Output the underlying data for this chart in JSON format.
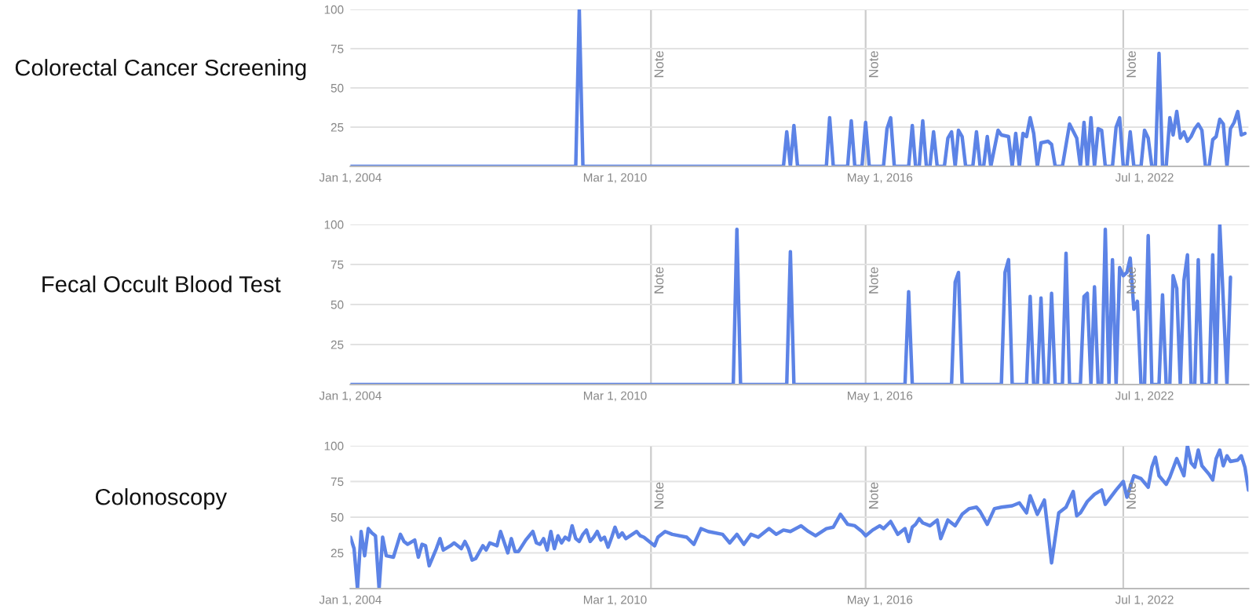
{
  "chart_data": [
    {
      "type": "line",
      "title": "Colorectal Cancer Screening",
      "grid": "y",
      "legend": false,
      "marker": "none",
      "line_style": "solid",
      "xlim": [
        "2004-01-01",
        "2024-12-01"
      ],
      "ylim": [
        0,
        100
      ],
      "xticks": [
        {
          "value": "2004-01-01",
          "label": "Jan 1, 2004"
        },
        {
          "value": "2010-03-01",
          "label": "Mar 1, 2010"
        },
        {
          "value": "2016-05-01",
          "label": "May 1, 2016"
        },
        {
          "value": "2022-07-01",
          "label": "Jul 1, 2022"
        }
      ],
      "yticks": [
        25,
        50,
        75,
        100
      ],
      "ref_lines": [
        {
          "axis": "x",
          "value": "2011-01-01",
          "label": "Note"
        },
        {
          "axis": "x",
          "value": "2016-01-01",
          "label": "Note"
        },
        {
          "axis": "x",
          "value": "2022-01-01",
          "label": "Note"
        }
      ],
      "x": [
        "2004-01",
        "2009-04",
        "2009-05",
        "2009-06",
        "2014-02",
        "2014-03",
        "2014-04",
        "2014-05",
        "2014-06",
        "2015-02",
        "2015-03",
        "2015-04",
        "2015-08",
        "2015-09",
        "2015-10",
        "2015-12",
        "2016-01",
        "2016-02",
        "2016-06",
        "2016-07",
        "2016-08",
        "2016-09",
        "2017-01",
        "2017-02",
        "2017-03",
        "2017-04",
        "2017-05",
        "2017-06",
        "2017-07",
        "2017-08",
        "2017-09",
        "2017-11",
        "2017-12",
        "2018-01",
        "2018-02",
        "2018-03",
        "2018-04",
        "2018-05",
        "2018-07",
        "2018-08",
        "2018-09",
        "2018-10",
        "2018-11",
        "2018-12",
        "2019-02",
        "2019-03",
        "2019-05",
        "2019-06",
        "2019-07",
        "2019-08",
        "2019-09",
        "2019-10",
        "2019-11",
        "2019-12",
        "2020-01",
        "2020-02",
        "2020-04",
        "2020-05",
        "2020-06",
        "2020-08",
        "2020-10",
        "2020-12",
        "2021-01",
        "2021-02",
        "2021-03",
        "2021-04",
        "2021-05",
        "2021-06",
        "2021-07",
        "2021-08",
        "2021-10",
        "2021-11",
        "2021-12",
        "2022-01",
        "2022-02",
        "2022-03",
        "2022-04",
        "2022-06",
        "2022-07",
        "2022-08",
        "2022-09",
        "2022-10",
        "2022-11",
        "2022-12",
        "2023-01",
        "2023-02",
        "2023-03",
        "2023-04",
        "2023-05",
        "2023-06",
        "2023-07",
        "2023-08",
        "2023-09",
        "2023-10",
        "2023-11",
        "2023-12",
        "2024-01",
        "2024-02",
        "2024-03",
        "2024-04",
        "2024-05",
        "2024-06",
        "2024-07",
        "2024-08",
        "2024-09",
        "2024-10",
        "2024-11"
      ],
      "series": [
        {
          "color": "#5c83e6",
          "values": [
            0,
            0,
            100,
            0,
            0,
            22,
            0,
            26,
            0,
            0,
            31,
            0,
            0,
            29,
            0,
            0,
            28,
            0,
            0,
            24,
            31,
            0,
            0,
            26,
            0,
            0,
            29,
            0,
            0,
            22,
            0,
            0,
            18,
            22,
            0,
            23,
            19,
            0,
            0,
            22,
            0,
            0,
            19,
            0,
            23,
            20,
            19,
            0,
            21,
            0,
            21,
            19,
            31,
            21,
            0,
            15,
            16,
            14,
            0,
            0,
            27,
            18,
            0,
            28,
            0,
            31,
            0,
            24,
            23,
            0,
            0,
            25,
            31,
            0,
            0,
            22,
            0,
            0,
            23,
            18,
            0,
            0,
            72,
            0,
            0,
            31,
            20,
            35,
            18,
            22,
            16,
            19,
            24,
            27,
            23,
            0,
            0,
            17,
            19,
            30,
            27,
            0,
            24,
            28,
            35,
            20,
            21
          ]
        }
      ]
    },
    {
      "type": "line",
      "title": "Fecal Occult Blood Test",
      "grid": "y",
      "legend": false,
      "marker": "none",
      "line_style": "solid",
      "xlim": [
        "2004-01-01",
        "2024-12-01"
      ],
      "ylim": [
        0,
        100
      ],
      "xticks": [
        {
          "value": "2004-01-01",
          "label": "Jan 1, 2004"
        },
        {
          "value": "2010-03-01",
          "label": "Mar 1, 2010"
        },
        {
          "value": "2016-05-01",
          "label": "May 1, 2016"
        },
        {
          "value": "2022-07-01",
          "label": "Jul 1, 2022"
        }
      ],
      "yticks": [
        25,
        50,
        75,
        100
      ],
      "ref_lines": [
        {
          "axis": "x",
          "value": "2011-01-01",
          "label": "Note"
        },
        {
          "axis": "x",
          "value": "2016-01-01",
          "label": "Note"
        },
        {
          "axis": "x",
          "value": "2022-01-01",
          "label": "Note"
        }
      ],
      "x": [
        "2004-01",
        "2012-12",
        "2013-01",
        "2013-02",
        "2014-03",
        "2014-04",
        "2014-05",
        "2016-12",
        "2017-01",
        "2017-02",
        "2018-01",
        "2018-02",
        "2018-03",
        "2018-04",
        "2019-03",
        "2019-04",
        "2019-05",
        "2019-06",
        "2019-10",
        "2019-11",
        "2019-12",
        "2020-01",
        "2020-02",
        "2020-03",
        "2020-04",
        "2020-05",
        "2020-06",
        "2020-08",
        "2020-09",
        "2020-10",
        "2021-01",
        "2021-02",
        "2021-03",
        "2021-04",
        "2021-05",
        "2021-06",
        "2021-07",
        "2021-08",
        "2021-09",
        "2021-10",
        "2021-11",
        "2021-12",
        "2022-01",
        "2022-02",
        "2022-03",
        "2022-04",
        "2022-05",
        "2022-06",
        "2022-07",
        "2022-08",
        "2022-09",
        "2022-11",
        "2022-12",
        "2023-01",
        "2023-02",
        "2023-03",
        "2023-04",
        "2023-05",
        "2023-06",
        "2023-07",
        "2023-08",
        "2023-09",
        "2023-10",
        "2023-11",
        "2024-01",
        "2024-02",
        "2024-03",
        "2024-04",
        "2024-05",
        "2024-06",
        "2024-07"
      ],
      "series": [
        {
          "color": "#5c83e6",
          "values": [
            0,
            0,
            97,
            0,
            0,
            83,
            0,
            0,
            58,
            0,
            0,
            64,
            70,
            0,
            0,
            70,
            78,
            0,
            0,
            55,
            0,
            0,
            54,
            0,
            0,
            57,
            0,
            0,
            82,
            0,
            0,
            55,
            57,
            0,
            61,
            0,
            0,
            97,
            0,
            78,
            0,
            73,
            68,
            70,
            79,
            47,
            52,
            0,
            0,
            93,
            0,
            0,
            56,
            0,
            0,
            68,
            60,
            0,
            65,
            81,
            0,
            0,
            78,
            0,
            0,
            81,
            0,
            100,
            52,
            0,
            67
          ]
        }
      ]
    },
    {
      "type": "line",
      "title": "Colonoscopy",
      "grid": "y",
      "legend": false,
      "marker": "none",
      "line_style": "solid",
      "xlim": [
        "2004-01-01",
        "2024-12-01"
      ],
      "ylim": [
        0,
        100
      ],
      "xticks": [
        {
          "value": "2004-01-01",
          "label": "Jan 1, 2004"
        },
        {
          "value": "2010-03-01",
          "label": "Mar 1, 2010"
        },
        {
          "value": "2016-05-01",
          "label": "May 1, 2016"
        },
        {
          "value": "2022-07-01",
          "label": "Jul 1, 2022"
        }
      ],
      "yticks": [
        25,
        50,
        75,
        100
      ],
      "ref_lines": [
        {
          "axis": "x",
          "value": "2011-01-01",
          "label": "Note"
        },
        {
          "axis": "x",
          "value": "2016-01-01",
          "label": "Note"
        },
        {
          "axis": "x",
          "value": "2022-01-01",
          "label": "Note"
        }
      ],
      "x": [
        "2004-01",
        "2004-02",
        "2004-03",
        "2004-04",
        "2004-05",
        "2004-06",
        "2004-07",
        "2004-08",
        "2004-09",
        "2004-10",
        "2004-11",
        "2005-01",
        "2005-03",
        "2005-04",
        "2005-05",
        "2005-07",
        "2005-08",
        "2005-09",
        "2005-10",
        "2005-11",
        "2006-01",
        "2006-02",
        "2006-03",
        "2006-05",
        "2006-06",
        "2006-08",
        "2006-09",
        "2006-10",
        "2006-11",
        "2006-12",
        "2007-02",
        "2007-03",
        "2007-04",
        "2007-06",
        "2007-07",
        "2007-09",
        "2007-10",
        "2007-11",
        "2007-12",
        "2008-02",
        "2008-04",
        "2008-05",
        "2008-06",
        "2008-07",
        "2008-08",
        "2008-09",
        "2008-10",
        "2008-11",
        "2008-12",
        "2009-01",
        "2009-02",
        "2009-03",
        "2009-04",
        "2009-05",
        "2009-06",
        "2009-07",
        "2009-08",
        "2009-09",
        "2009-10",
        "2009-11",
        "2009-12",
        "2010-01",
        "2010-02",
        "2010-03",
        "2010-04",
        "2010-05",
        "2010-06",
        "2010-09",
        "2010-10",
        "2010-11",
        "2011-02",
        "2011-03",
        "2011-05",
        "2011-07",
        "2011-11",
        "2012-01",
        "2012-03",
        "2012-05",
        "2012-09",
        "2012-11",
        "2013-01",
        "2013-03",
        "2013-05",
        "2013-07",
        "2013-10",
        "2013-12",
        "2014-02",
        "2014-04",
        "2014-07",
        "2014-09",
        "2014-11",
        "2015-02",
        "2015-04",
        "2015-06",
        "2015-08",
        "2015-10",
        "2015-12",
        "2016-01",
        "2016-03",
        "2016-05",
        "2016-06",
        "2016-08",
        "2016-10",
        "2016-12",
        "2017-01",
        "2017-02",
        "2017-03",
        "2017-04",
        "2017-05",
        "2017-07",
        "2017-09",
        "2017-10",
        "2017-12",
        "2018-02",
        "2018-04",
        "2018-06",
        "2018-08",
        "2018-09",
        "2018-11",
        "2019-01",
        "2019-03",
        "2019-06",
        "2019-08",
        "2019-10",
        "2019-11",
        "2020-01",
        "2020-03",
        "2020-05",
        "2020-07",
        "2020-09",
        "2020-11",
        "2020-12",
        "2021-01",
        "2021-03",
        "2021-05",
        "2021-07",
        "2021-08",
        "2021-11",
        "2022-01",
        "2022-02",
        "2022-04",
        "2022-06",
        "2022-08",
        "2022-09",
        "2022-10",
        "2022-11",
        "2023-01",
        "2023-02",
        "2023-04",
        "2023-06",
        "2023-07",
        "2023-08",
        "2023-09",
        "2023-10",
        "2023-11",
        "2024-01",
        "2024-02",
        "2024-03",
        "2024-04",
        "2024-05",
        "2024-06",
        "2024-07",
        "2024-09",
        "2024-10",
        "2024-11",
        "2024-12"
      ],
      "series": [
        {
          "color": "#5c83e6",
          "values": [
            36,
            28,
            0,
            40,
            23,
            42,
            39,
            37,
            0,
            36,
            23,
            22,
            38,
            33,
            31,
            34,
            22,
            31,
            30,
            16,
            28,
            35,
            27,
            30,
            32,
            28,
            33,
            28,
            20,
            21,
            30,
            27,
            32,
            30,
            40,
            25,
            35,
            26,
            26,
            34,
            40,
            32,
            31,
            35,
            27,
            40,
            28,
            37,
            32,
            36,
            34,
            44,
            35,
            33,
            38,
            41,
            33,
            36,
            40,
            34,
            36,
            29,
            36,
            43,
            36,
            39,
            35,
            40,
            37,
            36,
            30,
            36,
            40,
            38,
            36,
            31,
            42,
            40,
            38,
            32,
            38,
            31,
            38,
            36,
            42,
            38,
            41,
            40,
            44,
            40,
            37,
            42,
            43,
            52,
            45,
            44,
            40,
            37,
            41,
            44,
            42,
            47,
            38,
            42,
            33,
            43,
            45,
            49,
            46,
            44,
            48,
            35,
            48,
            44,
            52,
            56,
            57,
            54,
            45,
            56,
            57,
            58,
            60,
            53,
            65,
            52,
            62,
            18,
            53,
            57,
            68,
            51,
            53,
            61,
            66,
            69,
            59,
            69,
            75,
            64,
            79,
            77,
            71,
            85,
            92,
            79,
            73,
            78,
            91,
            79,
            100,
            88,
            85,
            97,
            86,
            80,
            76,
            91,
            97,
            86,
            93,
            89,
            90,
            93,
            85,
            69
          ]
        }
      ]
    }
  ]
}
